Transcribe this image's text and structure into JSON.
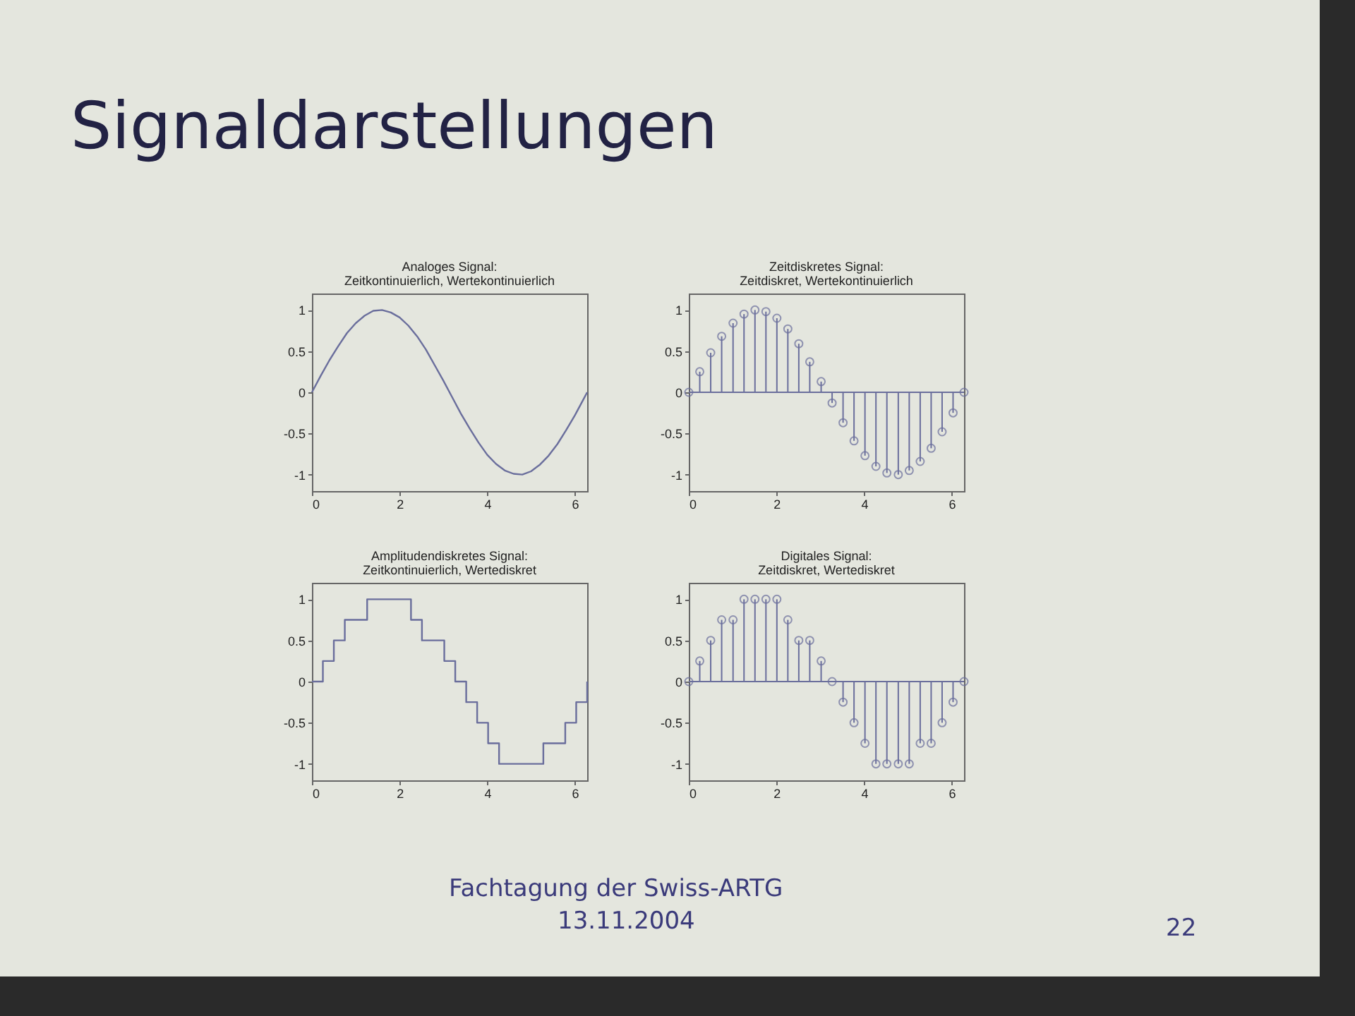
{
  "chart_data": [
    {
      "type": "line",
      "title": "Analoges Signal:",
      "subtitle": "Zeitkontinuierlich, Wertekontinuierlich",
      "color": "#6a6e9c",
      "x": [
        0,
        0.2,
        0.4,
        0.6,
        0.8,
        1.0,
        1.2,
        1.4,
        1.6,
        1.8,
        2.0,
        2.2,
        2.4,
        2.6,
        2.8,
        3.0,
        3.2,
        3.4,
        3.6,
        3.8,
        4.0,
        4.2,
        4.4,
        4.6,
        4.8,
        5.0,
        5.2,
        5.4,
        5.6,
        5.8,
        6.0,
        6.2,
        6.28
      ],
      "values": [
        0,
        0.2,
        0.39,
        0.56,
        0.72,
        0.84,
        0.93,
        0.99,
        1.0,
        0.97,
        0.91,
        0.81,
        0.68,
        0.52,
        0.33,
        0.14,
        -0.06,
        -0.26,
        -0.44,
        -0.61,
        -0.76,
        -0.87,
        -0.95,
        -0.99,
        -1.0,
        -0.96,
        -0.88,
        -0.77,
        -0.63,
        -0.46,
        -0.28,
        -0.08,
        0
      ],
      "xlim": [
        0,
        6.28
      ],
      "ylim": [
        -1.2,
        1.2
      ],
      "xticks": [
        0,
        2,
        4,
        6
      ],
      "yticks": [
        -1,
        -0.5,
        0,
        0.5,
        1
      ],
      "annotations": [
        "Signaldarstellungen"
      ]
    },
    {
      "type": "lollipop",
      "title": "Zeitdiskretes Signal:",
      "subtitle": "Zeitdiskret, Wertekontinuierlich",
      "color": "#6a6e9c",
      "marker": "circle",
      "x": [
        0,
        0.25,
        0.5,
        0.75,
        1.01,
        1.26,
        1.51,
        1.76,
        2.01,
        2.26,
        2.51,
        2.76,
        3.02,
        3.27,
        3.52,
        3.77,
        4.02,
        4.27,
        4.52,
        4.78,
        5.03,
        5.28,
        5.53,
        5.78,
        6.03,
        6.28
      ],
      "values": [
        0,
        0.25,
        0.48,
        0.68,
        0.84,
        0.95,
        1.0,
        0.98,
        0.9,
        0.77,
        0.59,
        0.37,
        0.13,
        -0.13,
        -0.37,
        -0.59,
        -0.77,
        -0.9,
        -0.98,
        -1.0,
        -0.95,
        -0.84,
        -0.68,
        -0.48,
        -0.25,
        0
      ],
      "xlim": [
        0,
        6.28
      ],
      "ylim": [
        -1.2,
        1.2
      ],
      "xticks": [
        0,
        2,
        4,
        6
      ],
      "yticks": [
        -1,
        -0.5,
        0,
        0.5,
        1
      ],
      "ref_lines": [
        {
          "axis": "y",
          "value": 0
        }
      ]
    },
    {
      "type": "step",
      "title": "Amplitudendiskretes Signal:",
      "subtitle": "Zeitkontinuierlich, Wertediskret",
      "color": "#6a6e9c",
      "x": [
        0,
        0.25,
        0.5,
        0.75,
        1.01,
        1.26,
        1.51,
        1.76,
        2.01,
        2.26,
        2.51,
        2.76,
        3.02,
        3.27,
        3.52,
        3.77,
        4.02,
        4.27,
        4.52,
        4.78,
        5.03,
        5.28,
        5.53,
        5.78,
        6.03,
        6.28
      ],
      "values": [
        0,
        0.25,
        0.5,
        0.75,
        0.75,
        1,
        1,
        1,
        1,
        0.75,
        0.5,
        0.5,
        0.25,
        0,
        -0.25,
        -0.5,
        -0.75,
        -1,
        -1,
        -1,
        -1,
        -0.75,
        -0.75,
        -0.5,
        -0.25,
        0
      ],
      "xlim": [
        0,
        6.28
      ],
      "ylim": [
        -1.2,
        1.2
      ],
      "xticks": [
        0,
        2,
        4,
        6
      ],
      "yticks": [
        -1,
        -0.5,
        0,
        0.5,
        1
      ]
    },
    {
      "type": "lollipop",
      "title": "Digitales Signal:",
      "subtitle": "Zeitdiskret, Wertediskret",
      "color": "#6a6e9c",
      "marker": "circle",
      "x": [
        0,
        0.25,
        0.5,
        0.75,
        1.01,
        1.26,
        1.51,
        1.76,
        2.01,
        2.26,
        2.51,
        2.76,
        3.02,
        3.27,
        3.52,
        3.77,
        4.02,
        4.27,
        4.52,
        4.78,
        5.03,
        5.28,
        5.53,
        5.78,
        6.03,
        6.28
      ],
      "values": [
        0,
        0.25,
        0.5,
        0.75,
        0.75,
        1,
        1,
        1,
        1,
        0.75,
        0.5,
        0.5,
        0.25,
        0,
        -0.25,
        -0.5,
        -0.75,
        -1,
        -1,
        -1,
        -1,
        -0.75,
        -0.75,
        -0.5,
        -0.25,
        0
      ],
      "xlim": [
        0,
        6.28
      ],
      "ylim": [
        -1.2,
        1.2
      ],
      "xticks": [
        0,
        2,
        4,
        6
      ],
      "yticks": [
        -1,
        -0.5,
        0,
        0.5,
        1
      ],
      "ref_lines": [
        {
          "axis": "y",
          "value": 0
        }
      ],
      "annotations": [
        "Fachtagung der Swiss-ARTG",
        "13.11.2004",
        "22"
      ]
    }
  ]
}
